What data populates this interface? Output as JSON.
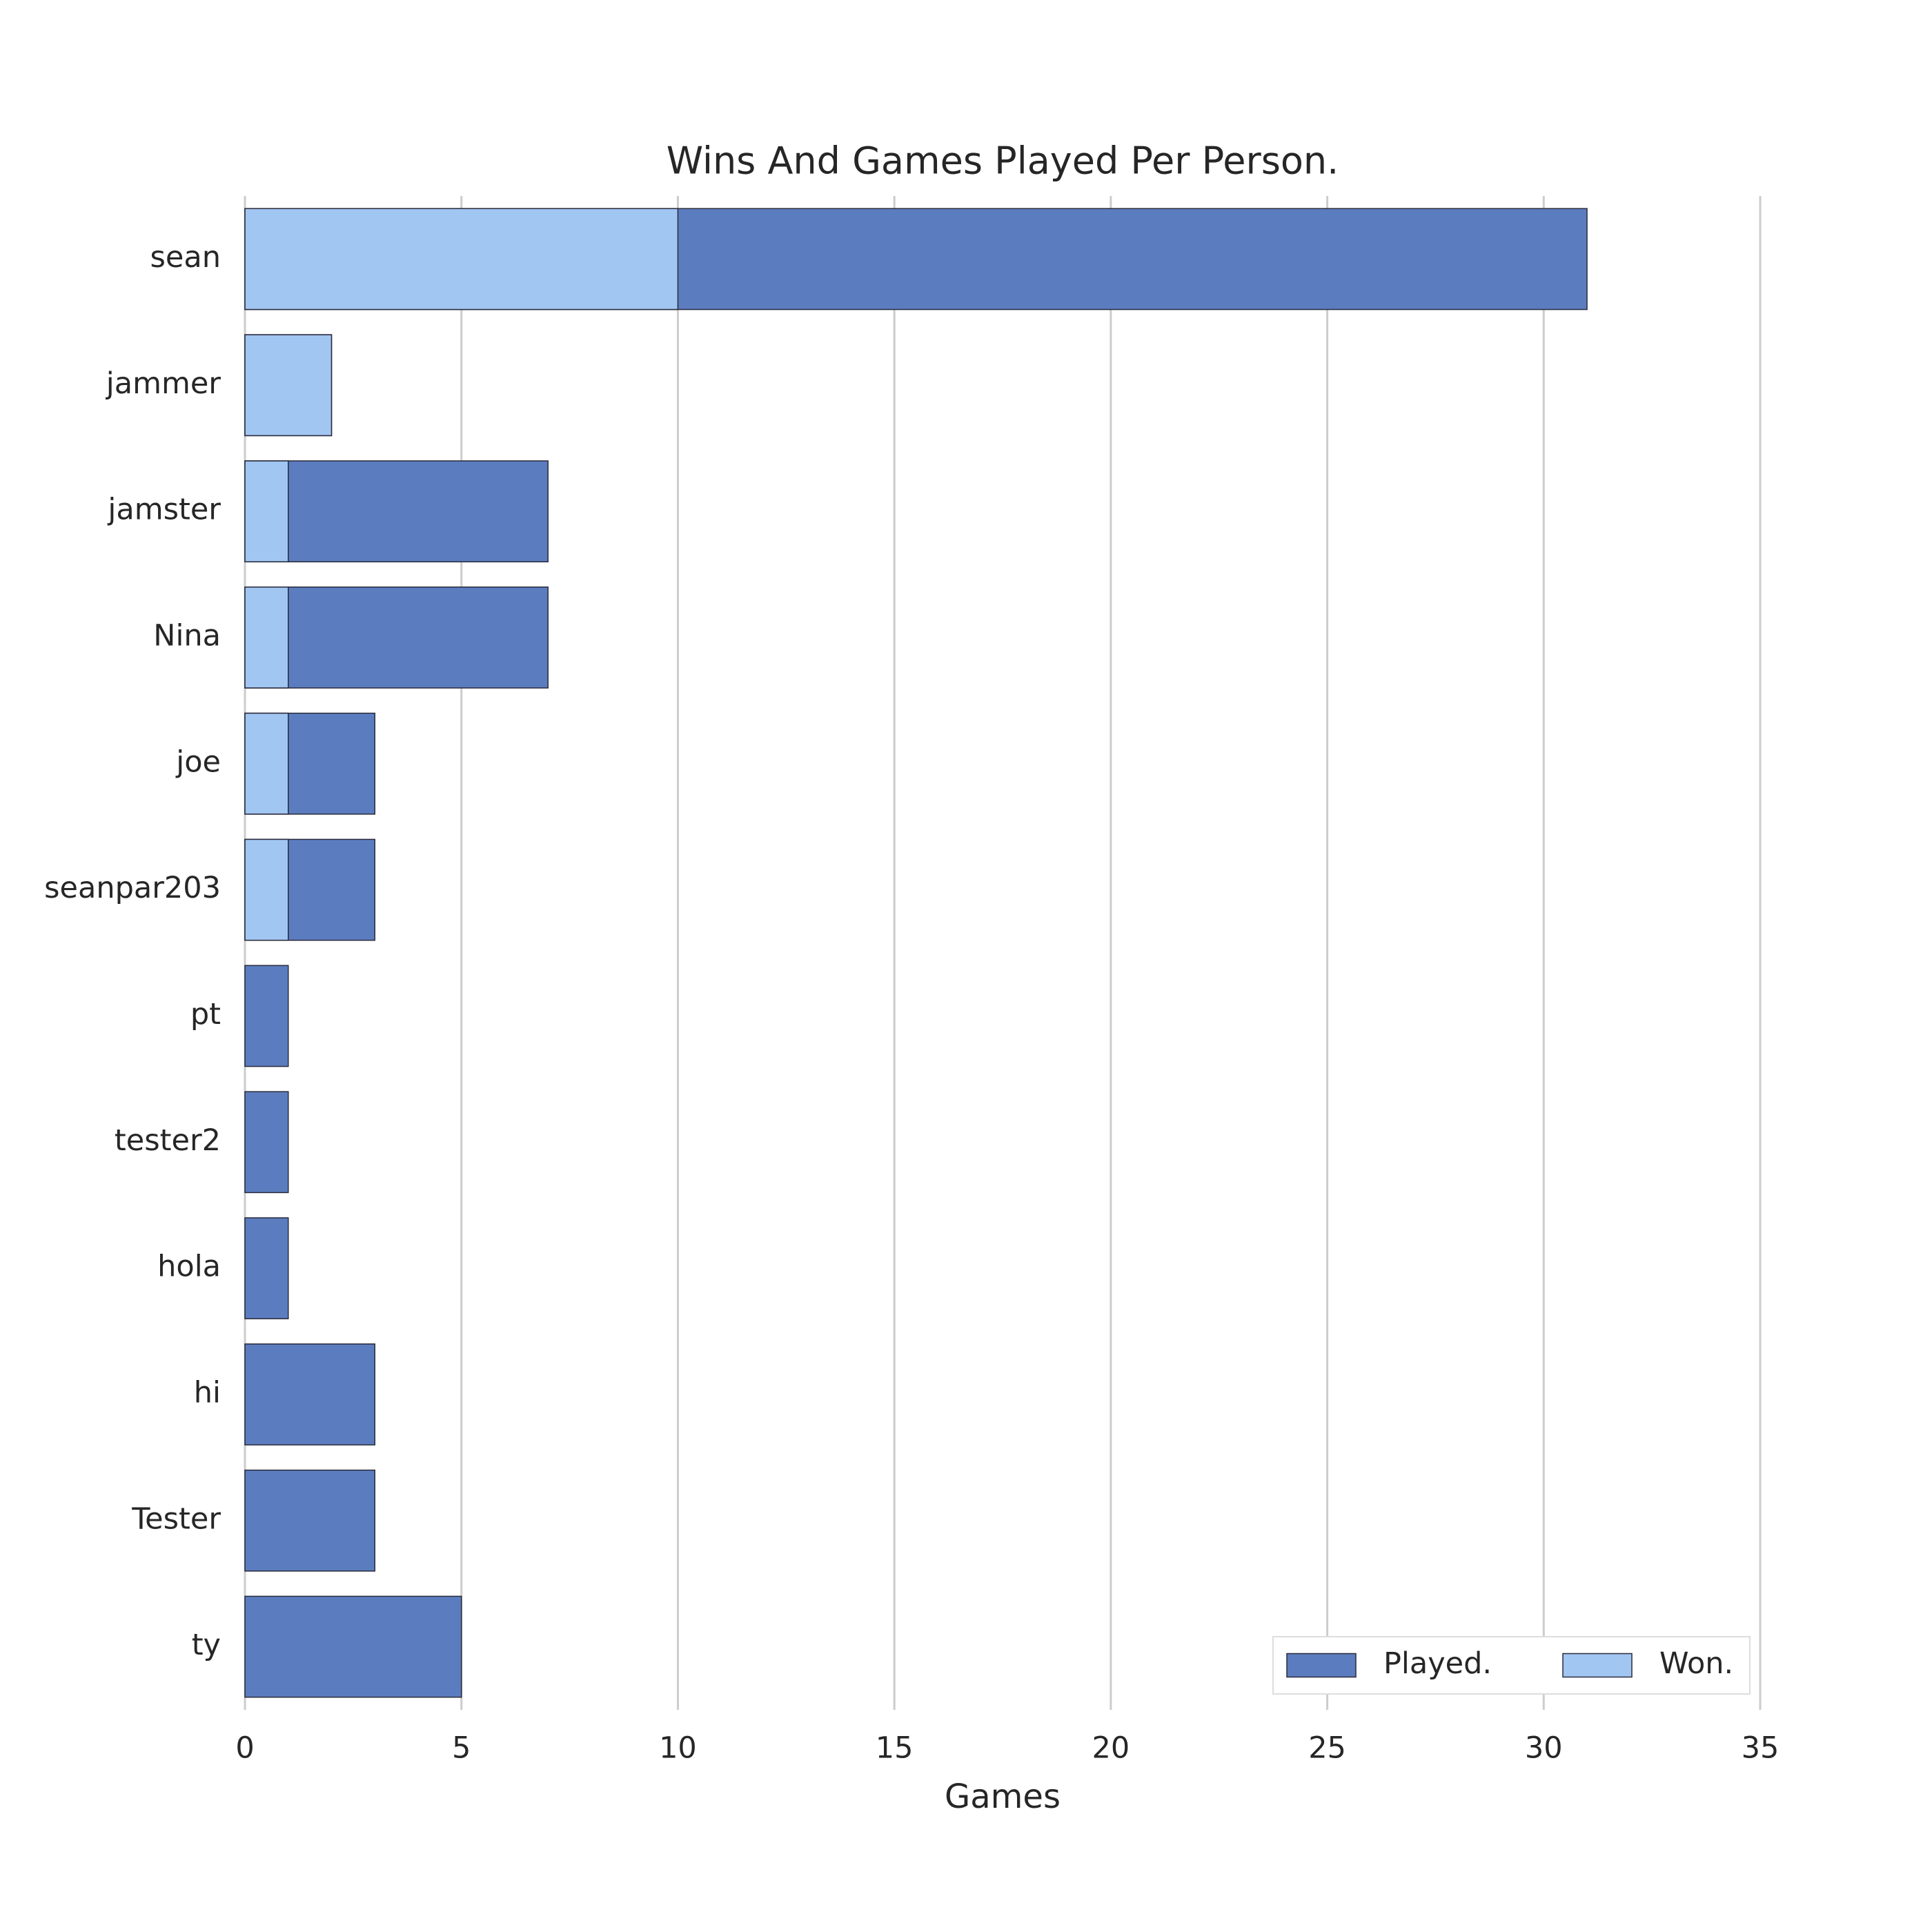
{
  "chart_data": {
    "type": "bar",
    "orientation": "horizontal",
    "overlap": true,
    "title": "Wins And Games Played Per Person.",
    "x_label": "Games",
    "categories": [
      "sean",
      "jammer",
      "jamster",
      "Nina",
      "joe",
      "seanpar203",
      "pt",
      "tester2",
      "hola",
      "hi",
      "Tester",
      "ty"
    ],
    "series": [
      {
        "name": "Played.",
        "color": "#5b7dbf",
        "values": [
          31,
          2,
          7,
          7,
          3,
          3,
          1,
          1,
          1,
          3,
          3,
          5
        ]
      },
      {
        "name": "Won.",
        "color": "#a1c6f2",
        "values": [
          10,
          2,
          1,
          1,
          1,
          1,
          0,
          0,
          0,
          0,
          0,
          0
        ]
      }
    ],
    "xlim": [
      0,
      35
    ],
    "xticks": [
      0,
      5,
      10,
      15,
      20,
      25,
      30,
      35
    ],
    "grid": true,
    "legend": "lower right"
  }
}
